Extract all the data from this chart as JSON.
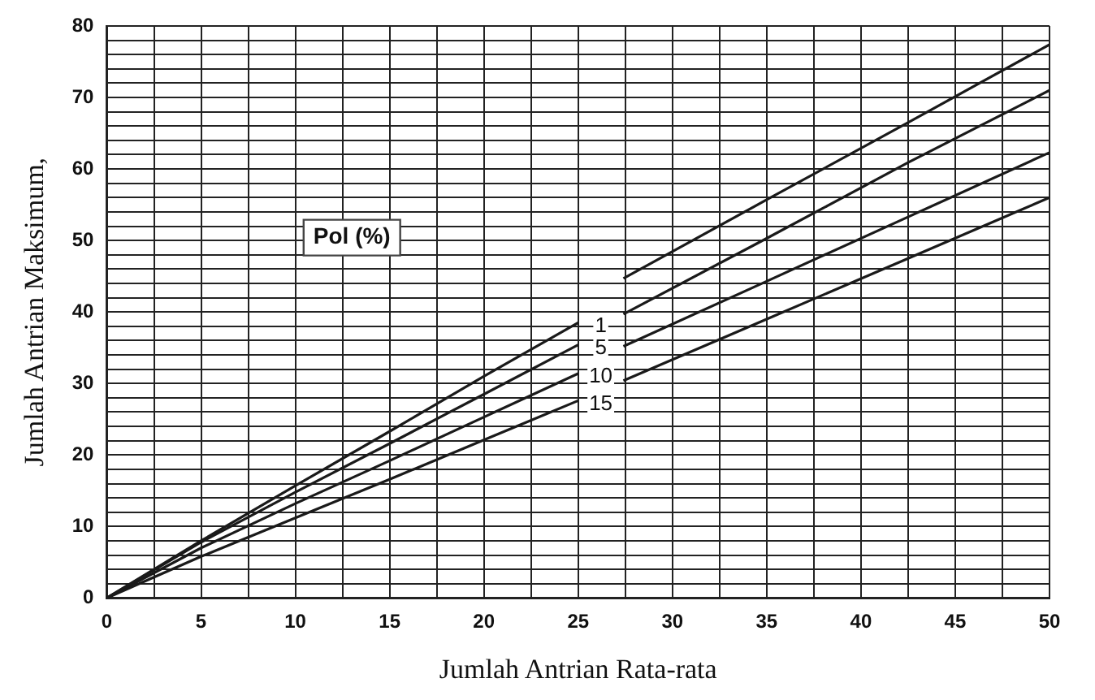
{
  "chart_data": {
    "type": "line",
    "xlabel": "Jumlah Antrian Rata-rata",
    "ylabel": "Jumlah Antrian Maksimum,",
    "legend_title": "Pol (%)",
    "xlim": [
      0,
      50
    ],
    "ylim": [
      0,
      80
    ],
    "xticks": [
      0,
      {
        "value": 2.5,
        "label": null
      },
      5,
      {
        "value": 7.5,
        "label": null
      },
      10,
      {
        "value": 12.5,
        "label": null
      },
      15,
      {
        "value": 17.5,
        "label": null
      },
      20,
      {
        "value": 22.5,
        "label": null
      },
      25,
      {
        "value": 27.5,
        "label": null
      },
      30,
      {
        "value": 32.5,
        "label": null
      },
      35,
      {
        "value": 37.5,
        "label": null
      },
      40,
      {
        "value": 42.5,
        "label": null
      },
      45,
      {
        "value": 47.5,
        "label": null
      },
      50
    ],
    "yticks": [
      0,
      {
        "value": 2,
        "label": null
      },
      {
        "value": 4,
        "label": null
      },
      {
        "value": 6,
        "label": null
      },
      {
        "value": 8,
        "label": null
      },
      10,
      {
        "value": 12,
        "label": null
      },
      {
        "value": 14,
        "label": null
      },
      {
        "value": 16,
        "label": null
      },
      {
        "value": 18,
        "label": null
      },
      20,
      {
        "value": 22,
        "label": null
      },
      {
        "value": 24,
        "label": null
      },
      {
        "value": 26,
        "label": null
      },
      {
        "value": 28,
        "label": null
      },
      30,
      {
        "value": 32,
        "label": null
      },
      {
        "value": 34,
        "label": null
      },
      {
        "value": 36,
        "label": null
      },
      {
        "value": 38,
        "label": null
      },
      40,
      {
        "value": 42,
        "label": null
      },
      {
        "value": 44,
        "label": null
      },
      {
        "value": 46,
        "label": null
      },
      {
        "value": 48,
        "label": null
      },
      50,
      {
        "value": 52,
        "label": null
      },
      {
        "value": 54,
        "label": null
      },
      {
        "value": 56,
        "label": null
      },
      {
        "value": 58,
        "label": null
      },
      60,
      {
        "value": 62,
        "label": null
      },
      {
        "value": 64,
        "label": null
      },
      {
        "value": 66,
        "label": null
      },
      {
        "value": 68,
        "label": null
      },
      70,
      {
        "value": 72,
        "label": null
      },
      {
        "value": 74,
        "label": null
      },
      {
        "value": 76,
        "label": null
      },
      {
        "value": 78,
        "label": null
      },
      80
    ],
    "grid": true,
    "legend": false,
    "marker": "none",
    "line_style": "solid",
    "series": [
      {
        "name": "1",
        "color": "#1a1a1a",
        "x": [
          0,
          5,
          10,
          15,
          20,
          25,
          26,
          27.4,
          35,
          42.5,
          50
        ],
        "values": [
          0,
          8,
          15.7,
          23.3,
          31,
          38.5,
          null,
          44.7,
          55.7,
          66.5,
          77.4
        ]
      },
      {
        "name": "5",
        "color": "#1a1a1a",
        "x": [
          0,
          5,
          10,
          15,
          20,
          25,
          26,
          27.4,
          35,
          42.5,
          50
        ],
        "values": [
          0,
          7.8,
          14.8,
          21.6,
          28.5,
          35.4,
          null,
          39.7,
          50.3,
          60.9,
          71
        ]
      },
      {
        "name": "10",
        "color": "#1a1a1a",
        "x": [
          0,
          5,
          10,
          15,
          20,
          25,
          26,
          27.4,
          35,
          42.5,
          50
        ],
        "values": [
          0,
          7,
          13.2,
          19.2,
          25.3,
          31.4,
          null,
          35.2,
          44.3,
          53.3,
          62.3
        ]
      },
      {
        "name": "15",
        "color": "#1a1a1a",
        "x": [
          0,
          5,
          10,
          15,
          20,
          25,
          26,
          27.4,
          35,
          42.5,
          50
        ],
        "values": [
          0,
          5.8,
          11.2,
          16.6,
          22.1,
          27.6,
          null,
          30.4,
          39,
          47.5,
          56
        ]
      }
    ]
  }
}
